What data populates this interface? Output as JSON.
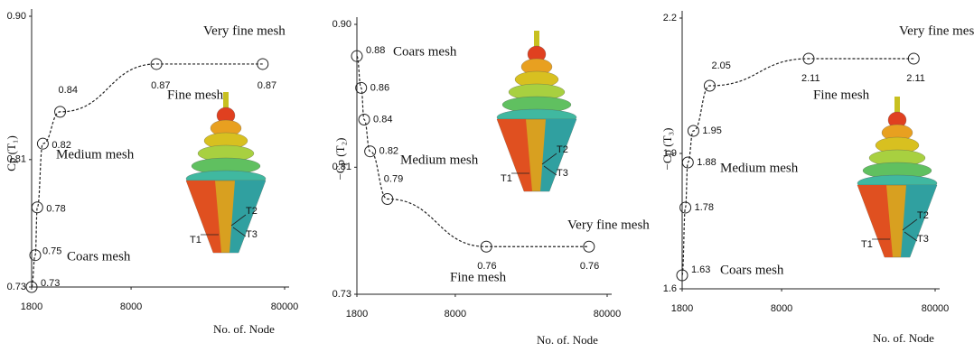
{
  "chart_data": [
    {
      "type": "line",
      "ylabel": "Cp (T₁)",
      "xlabel": "No. of. Node",
      "log_x": true,
      "x": [
        1800,
        1900,
        1960,
        2130,
        2760,
        11700,
        57600
      ],
      "series": [
        {
          "color": "#222222",
          "values": [
            0.73,
            0.75,
            0.78,
            0.82,
            0.84,
            0.87,
            0.87
          ]
        }
      ],
      "xlim": [
        1800,
        80000
      ],
      "xticks": [
        1800,
        8000,
        80000
      ],
      "ylim": [
        0.73,
        0.9
      ],
      "yticks": [
        0.73,
        0.81,
        {
          "value": 0.9,
          "label": "0.90"
        }
      ],
      "annotations": [
        "Coars mesh",
        "Medium mesh",
        "Fine mesh",
        "Very fine mesh"
      ],
      "inset_labels": [
        "T1",
        "T2",
        "T3"
      ]
    },
    {
      "type": "line",
      "ylabel": "−Cp (T₂)",
      "xlabel": "No. of. Node",
      "log_x": true,
      "x": [
        1800,
        1920,
        2010,
        2200,
        2860,
        12800,
        60700
      ],
      "series": [
        {
          "color": "#222222",
          "values": [
            0.88,
            0.86,
            0.84,
            0.82,
            0.79,
            0.76,
            0.76
          ]
        }
      ],
      "xlim": [
        1800,
        80000
      ],
      "xticks": [
        1800,
        8000,
        80000
      ],
      "ylim": [
        0.73,
        0.9
      ],
      "yticks": [
        0.73,
        0.81,
        {
          "value": 0.9,
          "label": "0.90"
        }
      ],
      "annotations": [
        "Coars mesh",
        "Medium mesh",
        "Fine mesh",
        "Very fine mesh"
      ],
      "inset_labels": [
        "T1",
        "T2",
        "T3"
      ]
    },
    {
      "type": "line",
      "ylabel": "−Cp (T₃)",
      "xlabel": "No. of. Node",
      "log_x": true,
      "x": [
        1800,
        1890,
        1960,
        2130,
        2720,
        12000,
        58000
      ],
      "series": [
        {
          "color": "#222222",
          "values": [
            1.63,
            1.78,
            1.88,
            1.95,
            2.05,
            2.11,
            2.11
          ]
        }
      ],
      "xlim": [
        1800,
        80000
      ],
      "xticks": [
        1800,
        8000,
        80000
      ],
      "ylim": [
        1.6,
        2.2
      ],
      "yticks": [
        1.6,
        1.9,
        2.2
      ],
      "annotations": [
        "Coars mesh",
        "Medium mesh",
        "Fine mesh",
        "Very fine mesh"
      ],
      "inset_labels": [
        "T1",
        "T2",
        "T3"
      ]
    }
  ]
}
